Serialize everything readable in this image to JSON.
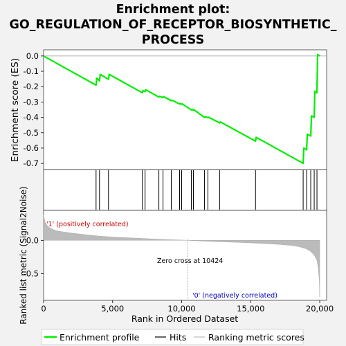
{
  "chart_data": {
    "type": "line",
    "title_lines": [
      "Enrichment plot:",
      "GO_REGULATION_OF_RECEPTOR_BIOSYNTHETIC_",
      "PROCESS"
    ],
    "top_panel": {
      "ylabel": "Enrichment score (ES)",
      "ylim": [
        -0.74,
        0.04
      ],
      "yticks": [
        0.0,
        -0.1,
        -0.2,
        -0.3,
        -0.4,
        -0.5,
        -0.6,
        -0.7
      ],
      "ytick_labels": [
        "0.0",
        "-0.1",
        "-0.2",
        "-0.3",
        "-0.4",
        "-0.5",
        "-0.6",
        "-0.7"
      ],
      "series": [
        {
          "name": "Enrichment profile",
          "color": "#00ee00",
          "x": [
            0,
            3800,
            3850,
            4050,
            4100,
            4700,
            4750,
            7150,
            7200,
            7350,
            7400,
            8350,
            8400,
            8650,
            8700,
            9250,
            9300,
            9850,
            9900,
            10000,
            10050,
            10700,
            10750,
            10850,
            10900,
            11650,
            11700,
            11900,
            11950,
            12750,
            12800,
            15350,
            15400,
            18800,
            18850,
            19050,
            19100,
            19350,
            19400,
            19600,
            19650,
            19800,
            19850,
            20000
          ],
          "y": [
            0.0,
            -0.19,
            -0.145,
            -0.162,
            -0.12,
            -0.152,
            -0.12,
            -0.24,
            -0.225,
            -0.232,
            -0.22,
            -0.268,
            -0.263,
            -0.272,
            -0.265,
            -0.292,
            -0.288,
            -0.313,
            -0.31,
            -0.315,
            -0.312,
            -0.352,
            -0.348,
            -0.354,
            -0.351,
            -0.4,
            -0.395,
            -0.402,
            -0.399,
            -0.436,
            -0.43,
            -0.555,
            -0.53,
            -0.7,
            -0.6,
            -0.612,
            -0.51,
            -0.522,
            -0.39,
            -0.4,
            -0.23,
            -0.24,
            0.01,
            0.0
          ]
        }
      ]
    },
    "hits": [
      3800,
      4050,
      4700,
      7150,
      7350,
      8350,
      8650,
      9250,
      9850,
      10000,
      10700,
      10850,
      11650,
      11900,
      12750,
      15350,
      18800,
      19050,
      19350,
      19600,
      19800
    ],
    "ranking_bar": {
      "colors": [
        "#ff0000",
        "#ff3333",
        "#ff5555",
        "#ff8888",
        "#ffaaaa",
        "#ffcccc",
        "#ffccee",
        "#ddccff",
        "#bbaaff",
        "#8877ff",
        "#5544ee",
        "#1100cc"
      ],
      "positive_label": "'1' (positively correlated)",
      "negative_label": "'0' (negatively correlated)"
    },
    "bottom_panel": {
      "ylabel": "Ranked list metric (Signal2Noise)",
      "ylim": [
        -0.9,
        0.45
      ],
      "yticks": [
        0.0,
        -0.5
      ],
      "ytick_labels": [
        "0.0",
        "-0.5"
      ],
      "series": [
        {
          "name": "Ranking metric scores",
          "x": [
            0,
            100,
            300,
            600,
            1000,
            2000,
            3000,
            4000,
            5000,
            6000,
            7000,
            8000,
            9000,
            10000,
            10424,
            11000,
            12000,
            13000,
            14000,
            15000,
            16000,
            17000,
            18000,
            18500,
            19000,
            19300,
            19600,
            19800,
            19900,
            19970,
            20000
          ],
          "y": [
            0.38,
            0.28,
            0.21,
            0.17,
            0.14,
            0.11,
            0.085,
            0.065,
            0.05,
            0.04,
            0.03,
            0.02,
            0.012,
            0.005,
            0.0,
            -0.006,
            -0.015,
            -0.022,
            -0.03,
            -0.038,
            -0.048,
            -0.06,
            -0.078,
            -0.095,
            -0.125,
            -0.16,
            -0.22,
            -0.3,
            -0.42,
            -0.6,
            -0.85
          ]
        }
      ],
      "zero_cross_label": "Zero cross at 10424",
      "zero_cross": 10424
    },
    "xaxis": {
      "xlabel": "Rank in Ordered Dataset",
      "xlim": [
        0,
        20500
      ],
      "xticks": [
        0,
        5000,
        10000,
        15000,
        20000
      ],
      "xtick_labels": [
        "0",
        "5,000",
        "10,000",
        "15,000",
        "20,000"
      ]
    },
    "legend": {
      "placement": "bottom",
      "items": [
        "Enrichment profile",
        "Hits",
        "Ranking metric scores"
      ]
    }
  }
}
